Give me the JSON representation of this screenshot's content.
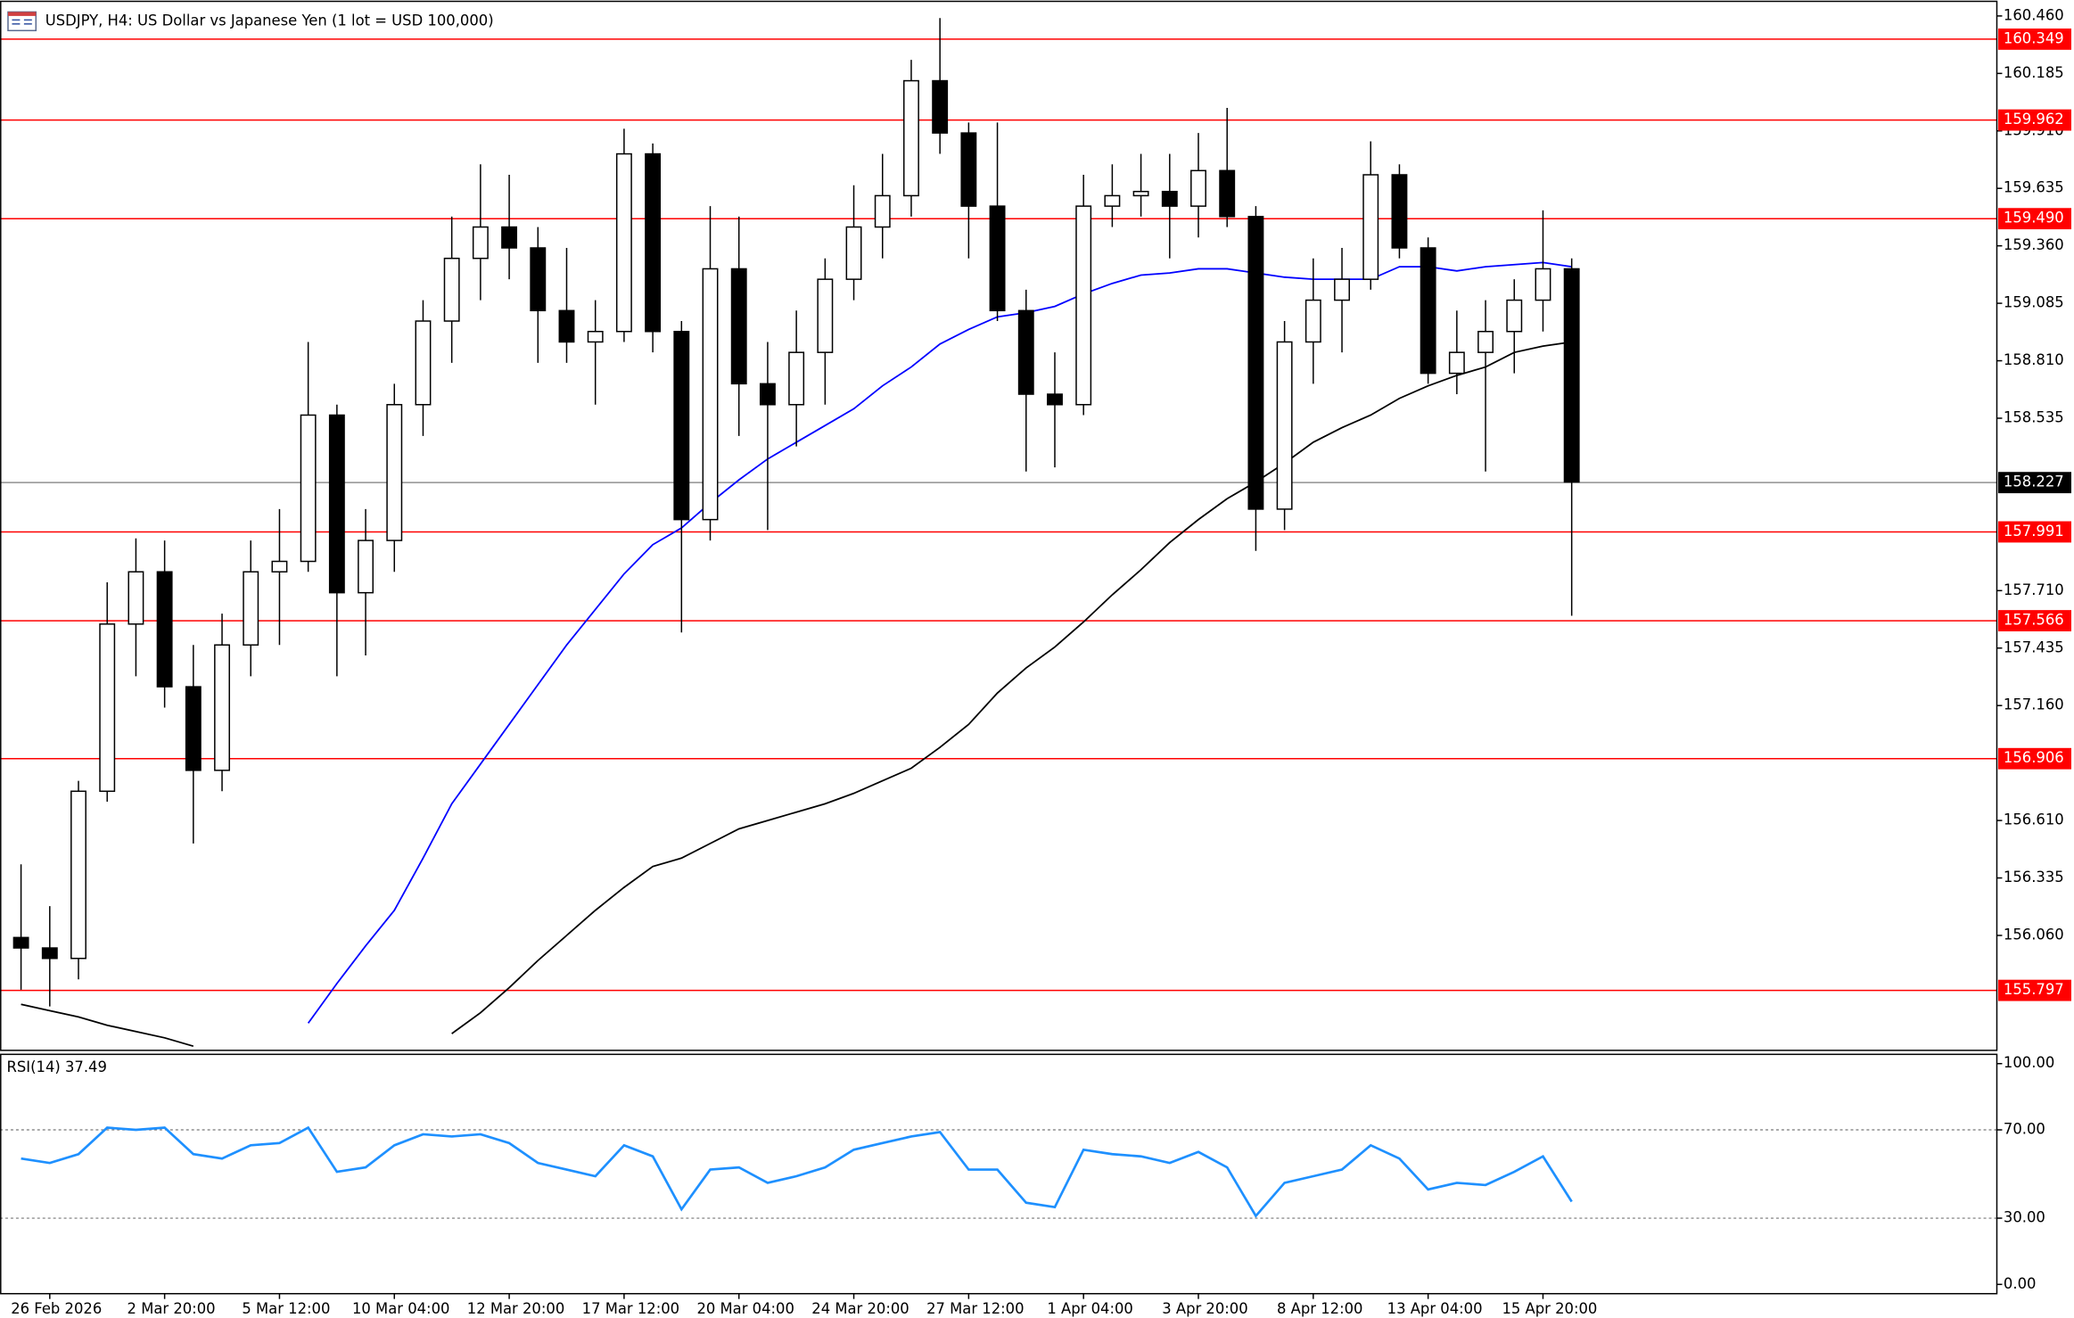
{
  "chart_data": {
    "type": "candlestick",
    "title": "USDJPY, H4:  US Dollar vs Japanese Yen (1 lot = USD 100,000)",
    "categories": [
      null,
      "26 Feb 2026",
      null,
      null,
      null,
      "2 Mar 20:00",
      null,
      null,
      null,
      "5 Mar 12:00",
      null,
      null,
      null,
      "10 Mar 04:00",
      null,
      null,
      null,
      "12 Mar 20:00",
      null,
      null,
      null,
      "17 Mar 12:00",
      null,
      null,
      null,
      "20 Mar 04:00",
      null,
      null,
      null,
      "24 Mar 20:00",
      null,
      null,
      null,
      "27 Mar 12:00",
      null,
      null,
      null,
      "1 Apr 04:00",
      null,
      null,
      null,
      "3 Apr 20:00",
      null,
      null,
      null,
      "8 Apr 12:00",
      null,
      null,
      null,
      "13 Apr 04:00",
      null,
      null,
      null,
      "15 Apr 20:00",
      null
    ],
    "open": [
      156.05,
      156.0,
      155.95,
      156.75,
      157.55,
      157.8,
      157.25,
      156.85,
      157.45,
      157.8,
      157.85,
      158.55,
      157.7,
      157.95,
      158.6,
      159.0,
      159.3,
      159.45,
      159.35,
      159.05,
      158.9,
      158.95,
      159.8,
      158.95,
      158.05,
      159.25,
      158.7,
      158.6,
      158.85,
      159.2,
      159.45,
      159.6,
      160.15,
      159.9,
      159.55,
      159.05,
      158.65,
      158.6,
      159.55,
      159.6,
      159.62,
      159.55,
      159.72,
      159.5,
      158.1,
      158.9,
      159.1,
      159.2,
      159.7,
      159.35,
      158.75,
      158.85,
      158.95,
      159.1,
      159.25
    ],
    "high": [
      156.4,
      156.2,
      156.8,
      157.75,
      157.96,
      157.95,
      157.45,
      157.6,
      157.95,
      158.1,
      158.9,
      158.6,
      158.1,
      158.7,
      159.1,
      159.5,
      159.75,
      159.7,
      159.45,
      159.35,
      159.1,
      159.92,
      159.85,
      159.0,
      159.55,
      159.5,
      158.9,
      159.05,
      159.3,
      159.65,
      159.8,
      160.25,
      160.45,
      159.95,
      159.95,
      159.15,
      158.85,
      159.7,
      159.75,
      159.8,
      159.8,
      159.9,
      160.02,
      159.55,
      159.0,
      159.3,
      159.35,
      159.86,
      159.75,
      159.4,
      159.05,
      159.1,
      159.2,
      159.53,
      159.3
    ],
    "low": [
      155.8,
      155.72,
      155.85,
      156.7,
      157.3,
      157.15,
      156.5,
      156.75,
      157.3,
      157.45,
      157.8,
      157.3,
      157.4,
      157.8,
      158.45,
      158.8,
      159.1,
      159.2,
      158.8,
      158.8,
      158.6,
      158.9,
      158.85,
      157.51,
      157.95,
      158.45,
      158.0,
      158.4,
      158.6,
      159.1,
      159.3,
      159.5,
      159.8,
      159.3,
      159.0,
      158.28,
      158.3,
      158.55,
      159.45,
      159.5,
      159.3,
      159.4,
      159.45,
      157.9,
      158.0,
      158.7,
      158.85,
      159.15,
      159.3,
      158.7,
      158.65,
      158.28,
      158.75,
      158.95,
      157.59
    ],
    "close": [
      156.0,
      155.95,
      156.75,
      157.55,
      157.8,
      157.25,
      156.85,
      157.45,
      157.8,
      157.85,
      158.55,
      157.7,
      157.95,
      158.6,
      159.0,
      159.3,
      159.45,
      159.35,
      159.05,
      158.9,
      158.95,
      159.8,
      158.95,
      158.05,
      159.25,
      158.7,
      158.6,
      158.85,
      159.2,
      159.45,
      159.6,
      160.15,
      159.9,
      159.55,
      159.05,
      158.65,
      158.6,
      159.55,
      159.6,
      159.62,
      159.55,
      159.72,
      159.5,
      158.1,
      158.9,
      159.1,
      159.2,
      159.7,
      159.35,
      158.75,
      158.85,
      158.95,
      159.1,
      159.25,
      158.23
    ],
    "ylim": [
      155.51,
      160.53
    ],
    "yticks": [
      {
        "value": 160.46,
        "label": "160.460"
      },
      160.185,
      {
        "value": 159.91,
        "label": "159.910"
      },
      159.635,
      {
        "value": 159.36,
        "label": "159.360"
      },
      159.085,
      {
        "value": 158.81,
        "label": "158.810"
      },
      158.535,
      {
        "value": 157.71,
        "label": "157.710"
      },
      157.435,
      {
        "value": 157.16,
        "label": "157.160"
      },
      {
        "value": 156.61,
        "label": "156.610"
      },
      156.335,
      {
        "value": 156.06,
        "label": "156.060"
      }
    ],
    "levels": {
      "color": "#ff0000",
      "values": [
        160.349,
        159.962,
        {
          "value": 159.49,
          "label": "159.490"
        },
        157.991,
        157.566,
        156.906,
        155.797
      ]
    },
    "current_price": {
      "value": 158.227,
      "color": "#000000"
    },
    "series": [
      {
        "color": "#0000ff",
        "values": [
          null,
          null,
          null,
          null,
          null,
          null,
          null,
          null,
          null,
          null,
          155.64,
          155.83,
          156.01,
          156.18,
          156.43,
          156.69,
          156.88,
          157.07,
          157.26,
          157.45,
          157.62,
          157.79,
          157.93,
          158.01,
          158.13,
          158.24,
          158.34,
          158.42,
          158.5,
          158.58,
          158.69,
          158.78,
          158.89,
          158.96,
          159.02,
          159.04,
          159.07,
          159.13,
          159.18,
          159.22,
          159.23,
          159.25,
          159.25,
          159.23,
          159.21,
          159.2,
          159.2,
          159.2,
          159.26,
          159.26,
          159.24,
          159.26,
          159.27,
          159.28,
          159.26
        ]
      },
      {
        "color": "#000000",
        "values": [
          155.73,
          155.7,
          155.67,
          155.63,
          155.6,
          155.57,
          155.53,
          null,
          null,
          null,
          null,
          null,
          null,
          null,
          null,
          155.59,
          155.69,
          155.81,
          155.94,
          156.06,
          156.18,
          156.29,
          156.39,
          156.43,
          156.5,
          156.57,
          156.61,
          156.65,
          156.69,
          156.74,
          156.8,
          156.86,
          156.96,
          157.07,
          157.22,
          157.34,
          157.44,
          157.56,
          157.69,
          157.81,
          157.94,
          158.05,
          158.15,
          158.23,
          158.32,
          158.42,
          158.49,
          158.55,
          158.63,
          158.69,
          158.74,
          158.78,
          158.85,
          158.88,
          158.9
        ]
      }
    ],
    "rsi": {
      "label": "RSI(14) 37.49",
      "color": "#1e90ff",
      "values": [
        57,
        55,
        59,
        71,
        70,
        71,
        59,
        57,
        63,
        64,
        71,
        51,
        53,
        63,
        68,
        67,
        68,
        64,
        55,
        52,
        49,
        63,
        58,
        34,
        52,
        53,
        46,
        49,
        53,
        61,
        64,
        67,
        69,
        52,
        52,
        37,
        35,
        61,
        59,
        58,
        55,
        60,
        53,
        31,
        46,
        49,
        52,
        63,
        57,
        43,
        46,
        45,
        51,
        58,
        37.49
      ],
      "ylim": [
        -4.2,
        104.2
      ],
      "yticks": [
        {
          "value": 100,
          "label": "100.00"
        },
        {
          "value": 70,
          "label": "70.00"
        },
        {
          "value": 30,
          "label": "30.00"
        },
        {
          "value": 0,
          "label": "0.00"
        }
      ],
      "dashed_levels": [
        70,
        30
      ]
    }
  }
}
